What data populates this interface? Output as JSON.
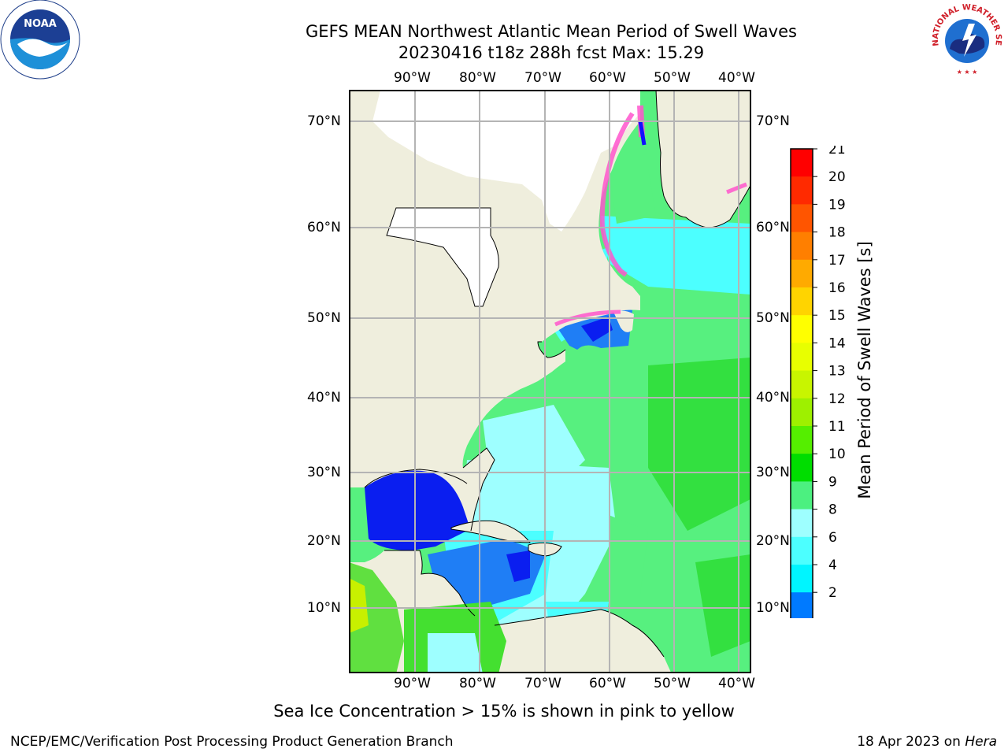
{
  "title_line1": "GEFS MEAN Northwest Atlantic Mean Period of Swell Waves",
  "title_line2": "20230416 t18z 288h fcst   Max: 15.29",
  "lon_labels": [
    "90°W",
    "80°W",
    "70°W",
    "60°W",
    "50°W",
    "40°W"
  ],
  "lat_labels": [
    "70°N",
    "60°N",
    "50°N",
    "40°N",
    "30°N",
    "20°N",
    "10°N"
  ],
  "colorbar": {
    "label": "Mean Period of Swell Waves [s]",
    "ticks": [
      "21",
      "20",
      "19",
      "18",
      "17",
      "16",
      "15",
      "14",
      "13",
      "12",
      "11",
      "10",
      "9",
      "8",
      "6",
      "4",
      "2"
    ],
    "colors": [
      "#ff0000",
      "#ff2a00",
      "#ff5500",
      "#ff7f00",
      "#ffaa00",
      "#ffd400",
      "#ffff00",
      "#e8ff00",
      "#c8f500",
      "#9ef000",
      "#55ee00",
      "#00dd00",
      "#4cf080",
      "#9effff",
      "#4cffff",
      "#00f5ff",
      "#007aff",
      "#0000ee"
    ],
    "extend": "min"
  },
  "note": "Sea Ice Concentration > 15% is shown in pink to yellow",
  "footer_left": "NCEP/EMC/Verification Post Processing Product Generation Branch",
  "footer_date": "18 Apr 2023 on",
  "footer_machine": "Hera",
  "logos": {
    "noaa": "NOAA",
    "nws": "NATIONAL WEATHER SERVICE"
  }
}
